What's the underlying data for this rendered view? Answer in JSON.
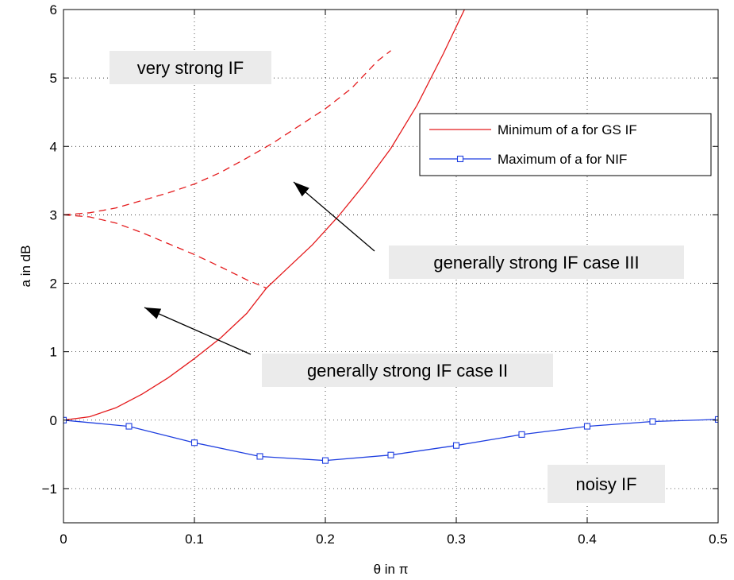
{
  "chart_data": {
    "type": "line",
    "title": "",
    "xlabel": "θ in π",
    "ylabel": "a in dB",
    "xlim": [
      0,
      0.5
    ],
    "ylim": [
      -1.5,
      6
    ],
    "xticks": [
      0,
      0.1,
      0.2,
      0.3,
      0.4,
      0.5
    ],
    "xtick_labels": [
      "0",
      "0.1",
      "0.2",
      "0.3",
      "0.4",
      "0.5"
    ],
    "yticks": [
      -1,
      0,
      1,
      2,
      3,
      4,
      5,
      6
    ],
    "ytick_labels": [
      "−1",
      "0",
      "1",
      "2",
      "3",
      "4",
      "5",
      "6"
    ],
    "grid": true,
    "legend_position": "top-right",
    "colors": {
      "red": "#e41a1c",
      "blue": "#1f3fe0"
    },
    "series": [
      {
        "name": "Minimum of a for GS IF",
        "style": "solid",
        "color": "red",
        "x": [
          0,
          0.02,
          0.04,
          0.06,
          0.08,
          0.1,
          0.12,
          0.14,
          0.155,
          0.17,
          0.19,
          0.21,
          0.23,
          0.25,
          0.27,
          0.29,
          0.31
        ],
        "y": [
          0,
          0.05,
          0.18,
          0.38,
          0.62,
          0.9,
          1.2,
          1.56,
          1.93,
          2.2,
          2.56,
          2.98,
          3.45,
          3.97,
          4.6,
          5.35,
          6.15
        ]
      },
      {
        "name": "Maximum of a for NIF",
        "style": "solid",
        "marker": "square",
        "color": "blue",
        "x": [
          0,
          0.05,
          0.1,
          0.15,
          0.2,
          0.25,
          0.3,
          0.35,
          0.4,
          0.45,
          0.5
        ],
        "y": [
          0,
          -0.09,
          -0.33,
          -0.53,
          -0.59,
          -0.51,
          -0.37,
          -0.21,
          -0.09,
          -0.02,
          0.01
        ]
      },
      {
        "style": "dashed",
        "color": "red",
        "x": [
          0,
          0.02,
          0.04,
          0.06,
          0.08,
          0.1,
          0.12,
          0.14,
          0.16,
          0.18,
          0.2,
          0.22,
          0.24,
          0.25
        ],
        "y": [
          3.0,
          3.03,
          3.1,
          3.21,
          3.32,
          3.45,
          3.62,
          3.83,
          4.05,
          4.3,
          4.55,
          4.85,
          5.25,
          5.4
        ]
      },
      {
        "style": "dashed",
        "color": "red",
        "x": [
          0,
          0.02,
          0.04,
          0.06,
          0.08,
          0.1,
          0.12,
          0.14,
          0.155
        ],
        "y": [
          3.0,
          2.97,
          2.88,
          2.74,
          2.58,
          2.42,
          2.24,
          2.05,
          1.93
        ]
      }
    ],
    "annotations": [
      {
        "text": "very strong IF"
      },
      {
        "text": "generally strong IF case III"
      },
      {
        "text": "generally strong IF case II"
      },
      {
        "text": "noisy IF"
      }
    ]
  }
}
